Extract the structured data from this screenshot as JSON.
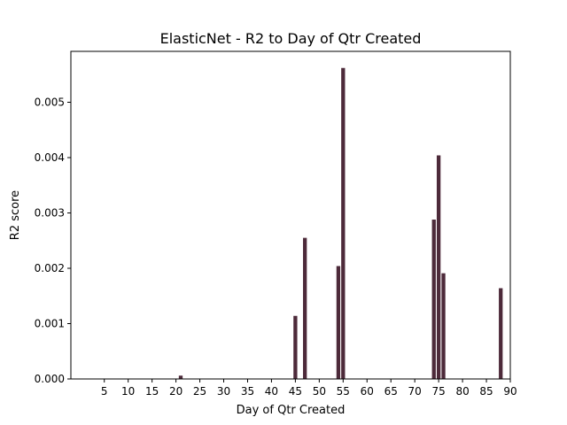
{
  "chart_data": {
    "type": "bar",
    "title": "ElasticNet - R2 to Day of Qtr Created",
    "xlabel": "Day of Qtr Created",
    "ylabel": "R2 score",
    "xlim": [
      -2,
      90
    ],
    "ylim": [
      0,
      0.00592
    ],
    "xticks": [
      5,
      10,
      15,
      20,
      25,
      30,
      35,
      40,
      45,
      50,
      55,
      60,
      65,
      70,
      75,
      80,
      85,
      90
    ],
    "xtick_labels": [
      "5",
      "10",
      "15",
      "20",
      "25",
      "30",
      "35",
      "40",
      "45",
      "50",
      "55",
      "60",
      "65",
      "70",
      "75",
      "80",
      "85",
      "90"
    ],
    "yticks": [
      0,
      0.001,
      0.002,
      0.003,
      0.004,
      0.005
    ],
    "ytick_labels": [
      "0.000",
      "0.001",
      "0.002",
      "0.003",
      "0.004",
      "0.005"
    ],
    "bar_color": "#4d2a3a",
    "grid": false,
    "x": [
      21,
      45,
      47,
      54,
      55,
      74,
      75,
      76,
      88
    ],
    "values": [
      6e-05,
      0.00114,
      0.00255,
      0.00204,
      0.00562,
      0.00288,
      0.00404,
      0.00191,
      0.00164
    ]
  }
}
